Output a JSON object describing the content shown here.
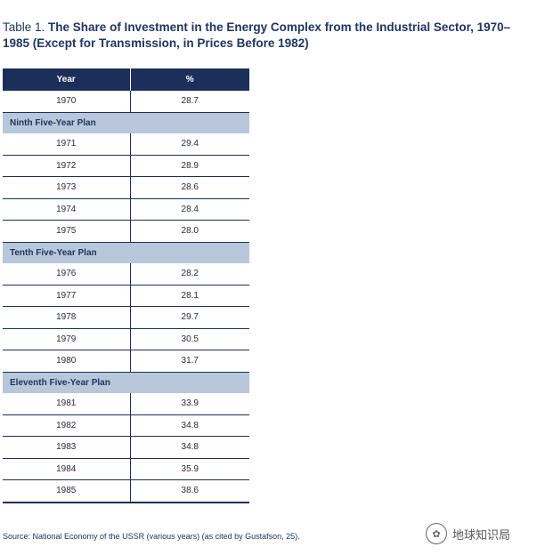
{
  "caption": {
    "lead": "Table 1. ",
    "title": "The Share of Investment in the Energy Complex from the Industrial Sector, 1970–1985 (Except for Transmission, in Prices Before 1982)"
  },
  "table": {
    "headers": [
      "Year",
      "%"
    ],
    "rows": [
      {
        "type": "data",
        "year": "1970",
        "value": "28.7"
      },
      {
        "type": "section",
        "label": "Ninth Five-Year Plan"
      },
      {
        "type": "data",
        "year": "1971",
        "value": "29.4"
      },
      {
        "type": "data",
        "year": "1972",
        "value": "28.9"
      },
      {
        "type": "data",
        "year": "1973",
        "value": "28.6"
      },
      {
        "type": "data",
        "year": "1974",
        "value": "28.4"
      },
      {
        "type": "data",
        "year": "1975",
        "value": "28.0"
      },
      {
        "type": "section",
        "label": "Tenth Five-Year Plan"
      },
      {
        "type": "data",
        "year": "1976",
        "value": "28.2"
      },
      {
        "type": "data",
        "year": "1977",
        "value": "28.1"
      },
      {
        "type": "data",
        "year": "1978",
        "value": "29.7"
      },
      {
        "type": "data",
        "year": "1979",
        "value": "30.5"
      },
      {
        "type": "data",
        "year": "1980",
        "value": "31.7"
      },
      {
        "type": "section",
        "label": "Eleventh Five-Year Plan"
      },
      {
        "type": "data",
        "year": "1981",
        "value": "33.9"
      },
      {
        "type": "data",
        "year": "1982",
        "value": "34.8"
      },
      {
        "type": "data",
        "year": "1983",
        "value": "34.8"
      },
      {
        "type": "data",
        "year": "1984",
        "value": "35.9"
      },
      {
        "type": "data",
        "year": "1985",
        "value": "38.6"
      }
    ]
  },
  "source": "Source: National Economy of the USSR (various years) (as cited by Gustafson, 25).",
  "watermark": {
    "icon": "wechat-icon",
    "text": "地球知识局"
  },
  "colors": {
    "header_bg": "#1b2f5a",
    "section_bg": "#b8c7da",
    "text": "#1f3563"
  }
}
